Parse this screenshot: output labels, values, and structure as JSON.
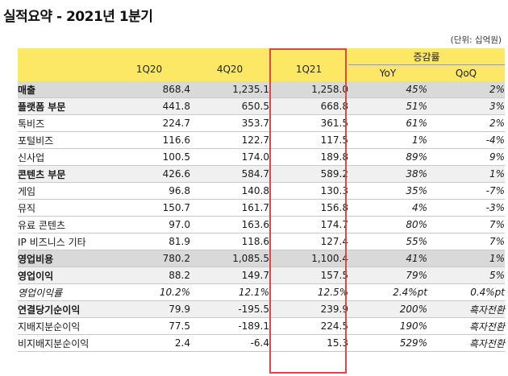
{
  "title": "실적요약 - 2021년 1분기",
  "unit_note": "(단위: 십억원)",
  "headers": {
    "col1": "1Q20",
    "col2": "4Q20",
    "col3": "1Q21",
    "growth": "증감률",
    "yoy": "YoY",
    "qoq": "QoQ"
  },
  "rows": [
    {
      "label": "매출",
      "v1": "868.4",
      "v2": "1,235.1",
      "v3": "1,258.0",
      "yoy": "45%",
      "qoq": "2%"
    },
    {
      "label": "플랫폼 부문",
      "v1": "441.8",
      "v2": "650.5",
      "v3": "668.8",
      "yoy": "51%",
      "qoq": "3%"
    },
    {
      "label": "톡비즈",
      "v1": "224.7",
      "v2": "353.7",
      "v3": "361.5",
      "yoy": "61%",
      "qoq": "2%"
    },
    {
      "label": "포털비즈",
      "v1": "116.6",
      "v2": "122.7",
      "v3": "117.5",
      "yoy": "1%",
      "qoq": "-4%"
    },
    {
      "label": "신사업",
      "v1": "100.5",
      "v2": "174.0",
      "v3": "189.8",
      "yoy": "89%",
      "qoq": "9%"
    },
    {
      "label": "콘텐츠 부문",
      "v1": "426.6",
      "v2": "584.7",
      "v3": "589.2",
      "yoy": "38%",
      "qoq": "1%"
    },
    {
      "label": "게임",
      "v1": "96.8",
      "v2": "140.8",
      "v3": "130.3",
      "yoy": "35%",
      "qoq": "-7%"
    },
    {
      "label": "뮤직",
      "v1": "150.7",
      "v2": "161.7",
      "v3": "156.8",
      "yoy": "4%",
      "qoq": "-3%"
    },
    {
      "label": "유료 콘텐츠",
      "v1": "97.0",
      "v2": "163.6",
      "v3": "174.7",
      "yoy": "80%",
      "qoq": "7%"
    },
    {
      "label": "IP 비즈니스 기타",
      "v1": "81.9",
      "v2": "118.6",
      "v3": "127.4",
      "yoy": "55%",
      "qoq": "7%"
    },
    {
      "label": "영업비용",
      "v1": "780.2",
      "v2": "1,085.5",
      "v3": "1,100.4",
      "yoy": "41%",
      "qoq": "1%"
    },
    {
      "label": "영업이익",
      "v1": "88.2",
      "v2": "149.7",
      "v3": "157.5",
      "yoy": "79%",
      "qoq": "5%"
    },
    {
      "label": "영업이익률",
      "v1": "10.2%",
      "v2": "12.1%",
      "v3": "12.5%",
      "yoy": "2.4%pt",
      "qoq": "0.4%pt"
    },
    {
      "label": "연결당기순이익",
      "v1": "79.9",
      "v2": "-195.5",
      "v3": "239.9",
      "yoy": "200%",
      "qoq": "흑자전환"
    },
    {
      "label": "지배지분순이익",
      "v1": "77.5",
      "v2": "-189.1",
      "v3": "224.5",
      "yoy": "190%",
      "qoq": "흑자전환"
    },
    {
      "label": "비지배지분순이익",
      "v1": "2.4",
      "v2": "-6.4",
      "v3": "15.3",
      "yoy": "529%",
      "qoq": "흑자전환"
    }
  ]
}
